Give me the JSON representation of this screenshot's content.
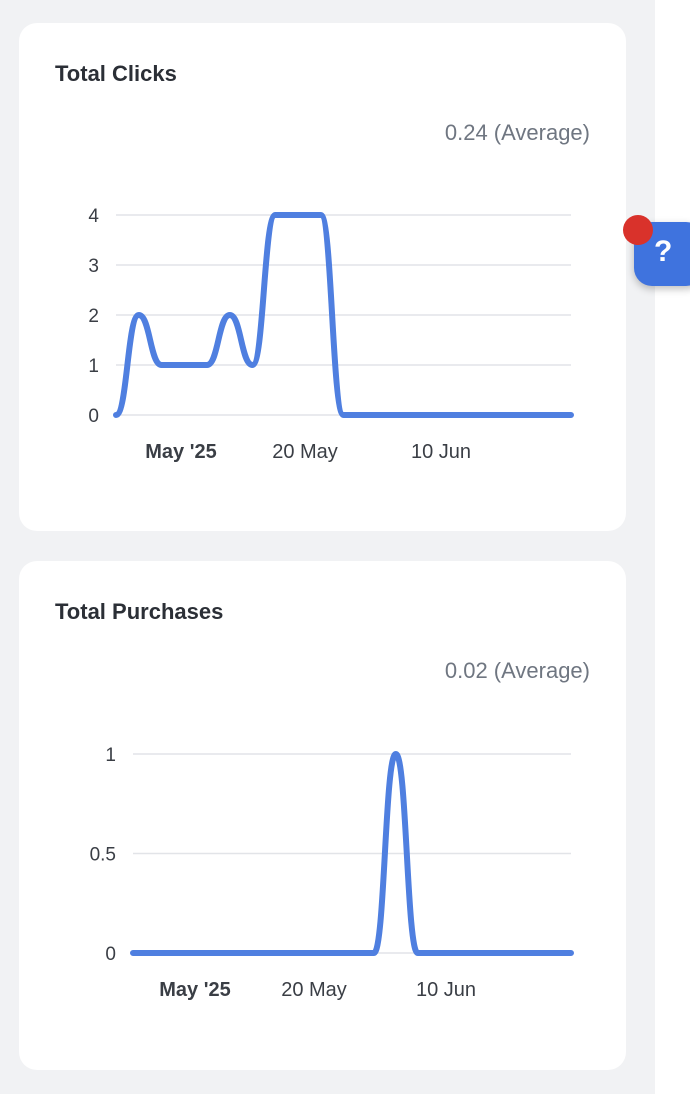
{
  "cards": [
    {
      "title": "Total Clicks",
      "average": "0.24 (Average)"
    },
    {
      "title": "Total Purchases",
      "average": "0.02 (Average)"
    }
  ],
  "help": {
    "label": "?"
  },
  "colors": {
    "line": "#4f7fe0",
    "grid": "#e2e4e8",
    "badge": "#d9322b",
    "fab": "#3f73de"
  },
  "chart_data": [
    {
      "type": "line",
      "title": "Total Clicks",
      "x": [
        "2025-04-29",
        "2025-05-02",
        "2025-05-05",
        "2025-05-08",
        "2025-05-11",
        "2025-05-14",
        "2025-05-17",
        "2025-05-20",
        "2025-05-23",
        "2025-05-26",
        "2025-05-29",
        "2025-06-01",
        "2025-06-04",
        "2025-06-07",
        "2025-06-10",
        "2025-06-13",
        "2025-06-16",
        "2025-06-19",
        "2025-06-22",
        "2025-06-25",
        "2025-06-28"
      ],
      "series": [
        {
          "values": [
            0,
            2,
            1,
            1,
            1,
            2,
            1,
            4,
            4,
            4,
            0,
            0,
            0,
            0,
            0,
            0,
            0,
            0,
            0,
            0,
            0
          ]
        }
      ],
      "x_ticks": [
        "May '25",
        "20 May",
        "10 Jun"
      ],
      "y_ticks": [
        "0",
        "1",
        "2",
        "3",
        "4"
      ],
      "ylim": [
        0,
        4
      ],
      "grid": true
    },
    {
      "type": "line",
      "title": "Total Purchases",
      "x": [
        "2025-04-29",
        "2025-05-02",
        "2025-05-05",
        "2025-05-08",
        "2025-05-11",
        "2025-05-14",
        "2025-05-17",
        "2025-05-20",
        "2025-05-23",
        "2025-05-26",
        "2025-05-29",
        "2025-06-01",
        "2025-06-04",
        "2025-06-07",
        "2025-06-10",
        "2025-06-13",
        "2025-06-16",
        "2025-06-19",
        "2025-06-22",
        "2025-06-25",
        "2025-06-28"
      ],
      "series": [
        {
          "values": [
            0,
            0,
            0,
            0,
            0,
            0,
            0,
            0,
            0,
            0,
            0,
            0,
            1,
            0,
            0,
            0,
            0,
            0,
            0,
            0,
            0
          ]
        }
      ],
      "x_ticks": [
        "May '25",
        "20 May",
        "10 Jun"
      ],
      "y_ticks": [
        "0",
        "0.5",
        "1"
      ],
      "ylim": [
        0,
        1
      ],
      "grid": true
    }
  ]
}
